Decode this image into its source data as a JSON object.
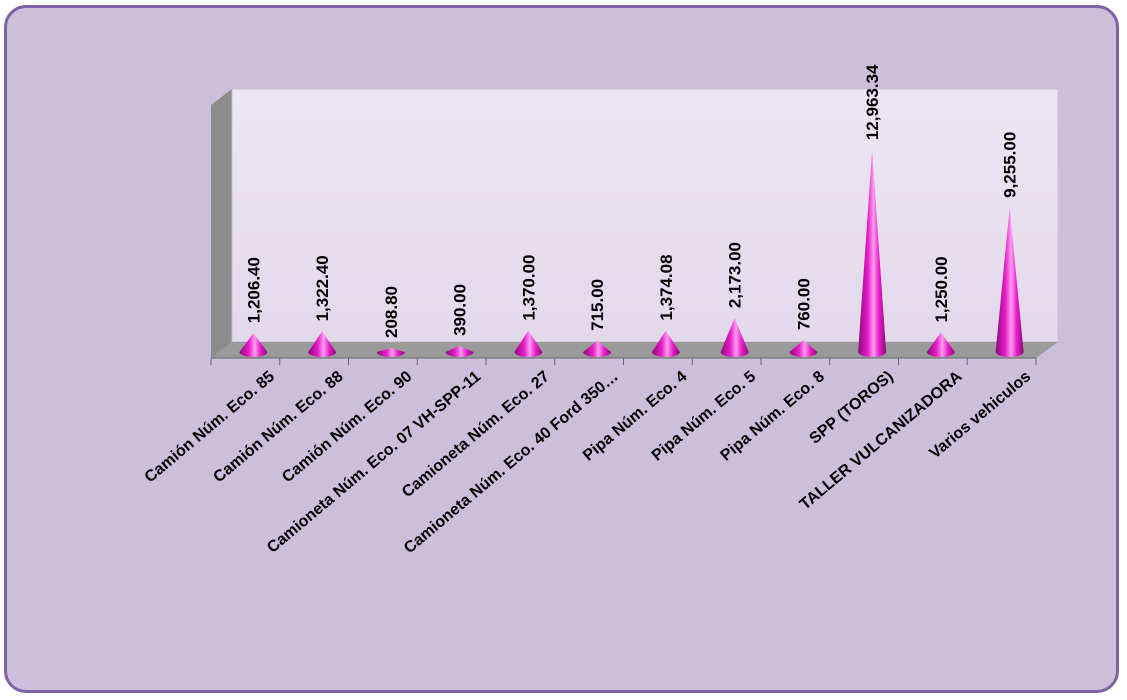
{
  "chart_data": {
    "type": "bar",
    "bar_shape": "cone",
    "style": "3d",
    "categories": [
      "Camión Núm. Eco. 85",
      "Camión Núm. Eco. 88",
      "Camión Núm. Eco. 90",
      "Camioneta Núm. Eco. 07 VH-SPP-11",
      "Camioneta Núm. Eco. 27",
      "Camioneta Núm. Eco. 40 Ford 350…",
      "Pipa Núm. Eco. 4",
      "Pipa Núm. Eco. 5",
      "Pipa Núm. Eco. 8",
      "SPP (TOROS)",
      "TALLER VULCANIZADORA",
      "Varios vehiculos"
    ],
    "values": [
      1206.4,
      1322.4,
      208.8,
      390.0,
      1370.0,
      715.0,
      1374.08,
      2173.0,
      760.0,
      12963.34,
      1250.0,
      9255.0
    ],
    "value_labels": [
      "1,206.40",
      "1,322.40",
      "208.80",
      "390.00",
      "1,370.00",
      "715.00",
      "1,374.08",
      "2,173.00",
      "760.00",
      "12,963.34",
      "1,250.00",
      "9,255.00"
    ],
    "ylim": [
      0,
      14000
    ],
    "grid": false,
    "legend": "none",
    "colors": {
      "bar": "#e81ec8",
      "bar_dark": "#8a0a78",
      "bar_light": "#ff9cf0",
      "frame_bg": "#cbbfdc",
      "frame_border": "#7d63a4",
      "plot_back": "#e8e0ef",
      "plot_side": "#8c8c8c",
      "plot_floor": "#9a9a9a"
    }
  }
}
